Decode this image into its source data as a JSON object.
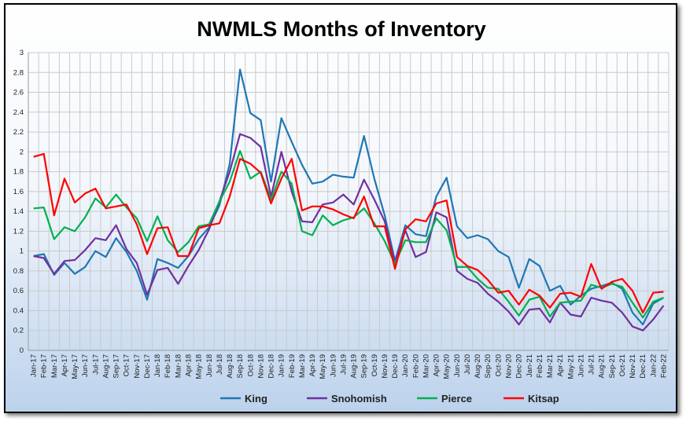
{
  "chart_data": {
    "type": "line",
    "title": "NWMLS Months of Inventory",
    "xlabel": "",
    "ylabel": "",
    "ylim": [
      0,
      3
    ],
    "y_ticks": [
      0,
      0.2,
      0.4,
      0.6,
      0.8,
      1,
      1.2,
      1.4,
      1.6,
      1.8,
      2,
      2.2,
      2.4,
      2.6,
      2.8,
      3
    ],
    "grid": true,
    "legend_position": "bottom",
    "categories": [
      "Jan-17",
      "Feb-17",
      "Mar-17",
      "Apr-17",
      "May-17",
      "Jun-17",
      "Jul-17",
      "Aug-17",
      "Sep-17",
      "Oct-17",
      "Nov-17",
      "Dec-17",
      "Jan-18",
      "Feb-18",
      "Mar-18",
      "Apr-18",
      "May-18",
      "Jun-18",
      "Jul-18",
      "Aug-18",
      "Sep-18",
      "Oct-18",
      "Nov-18",
      "Dec-18",
      "Jan-19",
      "Feb-19",
      "Mar-19",
      "Apr-19",
      "May-19",
      "Jun-19",
      "Jul-19",
      "Aug-19",
      "Sep-19",
      "Oct-19",
      "Nov-19",
      "Dec-19",
      "Jan-20",
      "Feb-20",
      "Mar-20",
      "Apr-20",
      "May-20",
      "Jun-20",
      "Jul-20",
      "Aug-20",
      "Sep-20",
      "Oct-20",
      "Nov-20",
      "Dec-20",
      "Jan-21",
      "Feb-21",
      "Mar-21",
      "Apr-21",
      "May-21",
      "Jun-21",
      "Jul-21",
      "Aug-21",
      "Sep-21",
      "Oct-21",
      "Nov-21",
      "Dec-21",
      "Jan-22",
      "Feb-22"
    ],
    "series": [
      {
        "name": "King",
        "color": "#1f77b4",
        "values": [
          0.95,
          0.97,
          0.76,
          0.88,
          0.77,
          0.84,
          1.0,
          0.94,
          1.13,
          0.99,
          0.8,
          0.51,
          0.92,
          0.88,
          0.83,
          0.95,
          1.12,
          1.24,
          1.46,
          1.88,
          2.83,
          2.39,
          2.32,
          1.7,
          2.34,
          2.1,
          1.87,
          1.68,
          1.7,
          1.77,
          1.75,
          1.74,
          2.16,
          1.73,
          1.36,
          0.9,
          1.26,
          1.17,
          1.15,
          1.55,
          1.74,
          1.25,
          1.13,
          1.16,
          1.12,
          1.0,
          0.94,
          0.63,
          0.92,
          0.85,
          0.6,
          0.65,
          0.46,
          0.55,
          0.62,
          0.65,
          0.68,
          0.62,
          0.38,
          0.26,
          0.47,
          0.53
        ]
      },
      {
        "name": "Snohomish",
        "color": "#7030a0",
        "values": [
          0.95,
          0.93,
          0.77,
          0.9,
          0.91,
          1.01,
          1.13,
          1.11,
          1.26,
          1.02,
          0.88,
          0.56,
          0.81,
          0.83,
          0.67,
          0.85,
          1.01,
          1.22,
          1.5,
          1.8,
          2.18,
          2.14,
          2.05,
          1.55,
          2.0,
          1.6,
          1.3,
          1.29,
          1.47,
          1.49,
          1.57,
          1.47,
          1.72,
          1.52,
          1.3,
          0.88,
          1.21,
          0.94,
          0.99,
          1.39,
          1.34,
          0.8,
          0.72,
          0.68,
          0.57,
          0.49,
          0.39,
          0.26,
          0.41,
          0.42,
          0.28,
          0.48,
          0.36,
          0.34,
          0.53,
          0.5,
          0.48,
          0.38,
          0.24,
          0.2,
          0.31,
          0.45
        ]
      },
      {
        "name": "Pierce",
        "color": "#00b050",
        "values": [
          1.43,
          1.44,
          1.12,
          1.24,
          1.2,
          1.34,
          1.53,
          1.44,
          1.57,
          1.44,
          1.33,
          1.1,
          1.35,
          1.11,
          0.99,
          1.09,
          1.25,
          1.27,
          1.5,
          1.7,
          2.01,
          1.73,
          1.8,
          1.52,
          1.8,
          1.68,
          1.2,
          1.16,
          1.36,
          1.26,
          1.31,
          1.34,
          1.43,
          1.28,
          1.1,
          0.87,
          1.11,
          1.09,
          1.09,
          1.33,
          1.21,
          0.84,
          0.84,
          0.72,
          0.63,
          0.62,
          0.49,
          0.35,
          0.51,
          0.54,
          0.34,
          0.48,
          0.49,
          0.5,
          0.66,
          0.63,
          0.67,
          0.64,
          0.48,
          0.33,
          0.49,
          0.53
        ]
      },
      {
        "name": "Kitsap",
        "color": "#ff0000",
        "values": [
          1.95,
          1.98,
          1.36,
          1.73,
          1.49,
          1.58,
          1.63,
          1.43,
          1.45,
          1.47,
          1.27,
          0.97,
          1.23,
          1.24,
          0.95,
          0.95,
          1.23,
          1.26,
          1.28,
          1.55,
          1.93,
          1.88,
          1.79,
          1.48,
          1.73,
          1.93,
          1.41,
          1.45,
          1.45,
          1.42,
          1.37,
          1.33,
          1.55,
          1.25,
          1.25,
          0.82,
          1.22,
          1.32,
          1.3,
          1.48,
          1.51,
          0.94,
          0.85,
          0.81,
          0.71,
          0.58,
          0.6,
          0.46,
          0.61,
          0.55,
          0.43,
          0.57,
          0.58,
          0.54,
          0.87,
          0.62,
          0.69,
          0.72,
          0.6,
          0.38,
          0.58,
          0.59
        ]
      }
    ]
  }
}
